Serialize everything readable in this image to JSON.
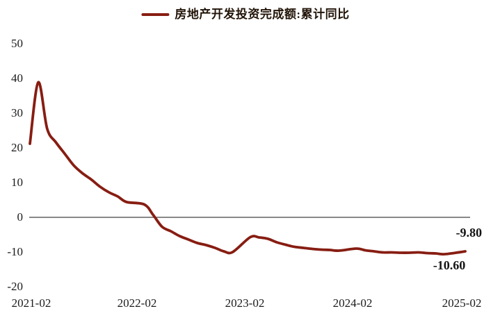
{
  "chart_data": {
    "type": "line",
    "title": "房地产开发投资完成额:累计同比",
    "legend": {
      "label": "房地产开发投资完成额:累计同比",
      "position": "top-center",
      "swatch": "line"
    },
    "x_tick_labels": [
      "2021-02",
      "2022-02",
      "2023-02",
      "2024-02",
      "2025-02"
    ],
    "y_ticks": [
      50,
      40,
      30,
      20,
      10,
      0,
      -10,
      -20
    ],
    "ylim": [
      -20,
      50
    ],
    "x_range": [
      "2021-02",
      "2025-02"
    ],
    "grid": "zero-baseline-only",
    "line_color": "#871D12",
    "zero_line_color": "#404040",
    "text_color": "#1B1B1B",
    "background": "#FFFFFF",
    "lead_in": {
      "value": 21.2
    },
    "series": [
      {
        "name": "房地产开发投资完成额:累计同比",
        "points": [
          [
            "2021-02",
            38.9
          ],
          [
            "2021-03",
            25.6
          ],
          [
            "2021-04",
            21.6
          ],
          [
            "2021-05",
            18.3
          ],
          [
            "2021-06",
            15.0
          ],
          [
            "2021-07",
            12.7
          ],
          [
            "2021-08",
            10.9
          ],
          [
            "2021-09",
            8.8
          ],
          [
            "2021-10",
            7.2
          ],
          [
            "2021-11",
            6.0
          ],
          [
            "2021-12",
            4.4
          ],
          [
            "2022-02",
            3.7
          ],
          [
            "2022-03",
            0.7
          ],
          [
            "2022-04",
            -2.7
          ],
          [
            "2022-05",
            -4.0
          ],
          [
            "2022-06",
            -5.4
          ],
          [
            "2022-07",
            -6.4
          ],
          [
            "2022-08",
            -7.4
          ],
          [
            "2022-09",
            -8.0
          ],
          [
            "2022-10",
            -8.8
          ],
          [
            "2022-11",
            -9.8
          ],
          [
            "2022-12",
            -10.0
          ],
          [
            "2023-02",
            -5.7
          ],
          [
            "2023-03",
            -5.8
          ],
          [
            "2023-04",
            -6.2
          ],
          [
            "2023-05",
            -7.2
          ],
          [
            "2023-06",
            -7.9
          ],
          [
            "2023-07",
            -8.5
          ],
          [
            "2023-08",
            -8.8
          ],
          [
            "2023-09",
            -9.1
          ],
          [
            "2023-10",
            -9.3
          ],
          [
            "2023-11",
            -9.4
          ],
          [
            "2023-12",
            -9.6
          ],
          [
            "2024-02",
            -9.0
          ],
          [
            "2024-03",
            -9.5
          ],
          [
            "2024-04",
            -9.8
          ],
          [
            "2024-05",
            -10.1
          ],
          [
            "2024-06",
            -10.1
          ],
          [
            "2024-07",
            -10.2
          ],
          [
            "2024-08",
            -10.2
          ],
          [
            "2024-09",
            -10.1
          ],
          [
            "2024-10",
            -10.3
          ],
          [
            "2024-11",
            -10.4
          ],
          [
            "2024-12",
            -10.6
          ],
          [
            "2025-02",
            -9.8
          ]
        ]
      }
    ],
    "annotations": [
      {
        "text": "-9.80",
        "month": "2025-02",
        "value": -9.8
      },
      {
        "text": "-10.60",
        "month": "2024-12",
        "value": -10.6
      }
    ]
  }
}
